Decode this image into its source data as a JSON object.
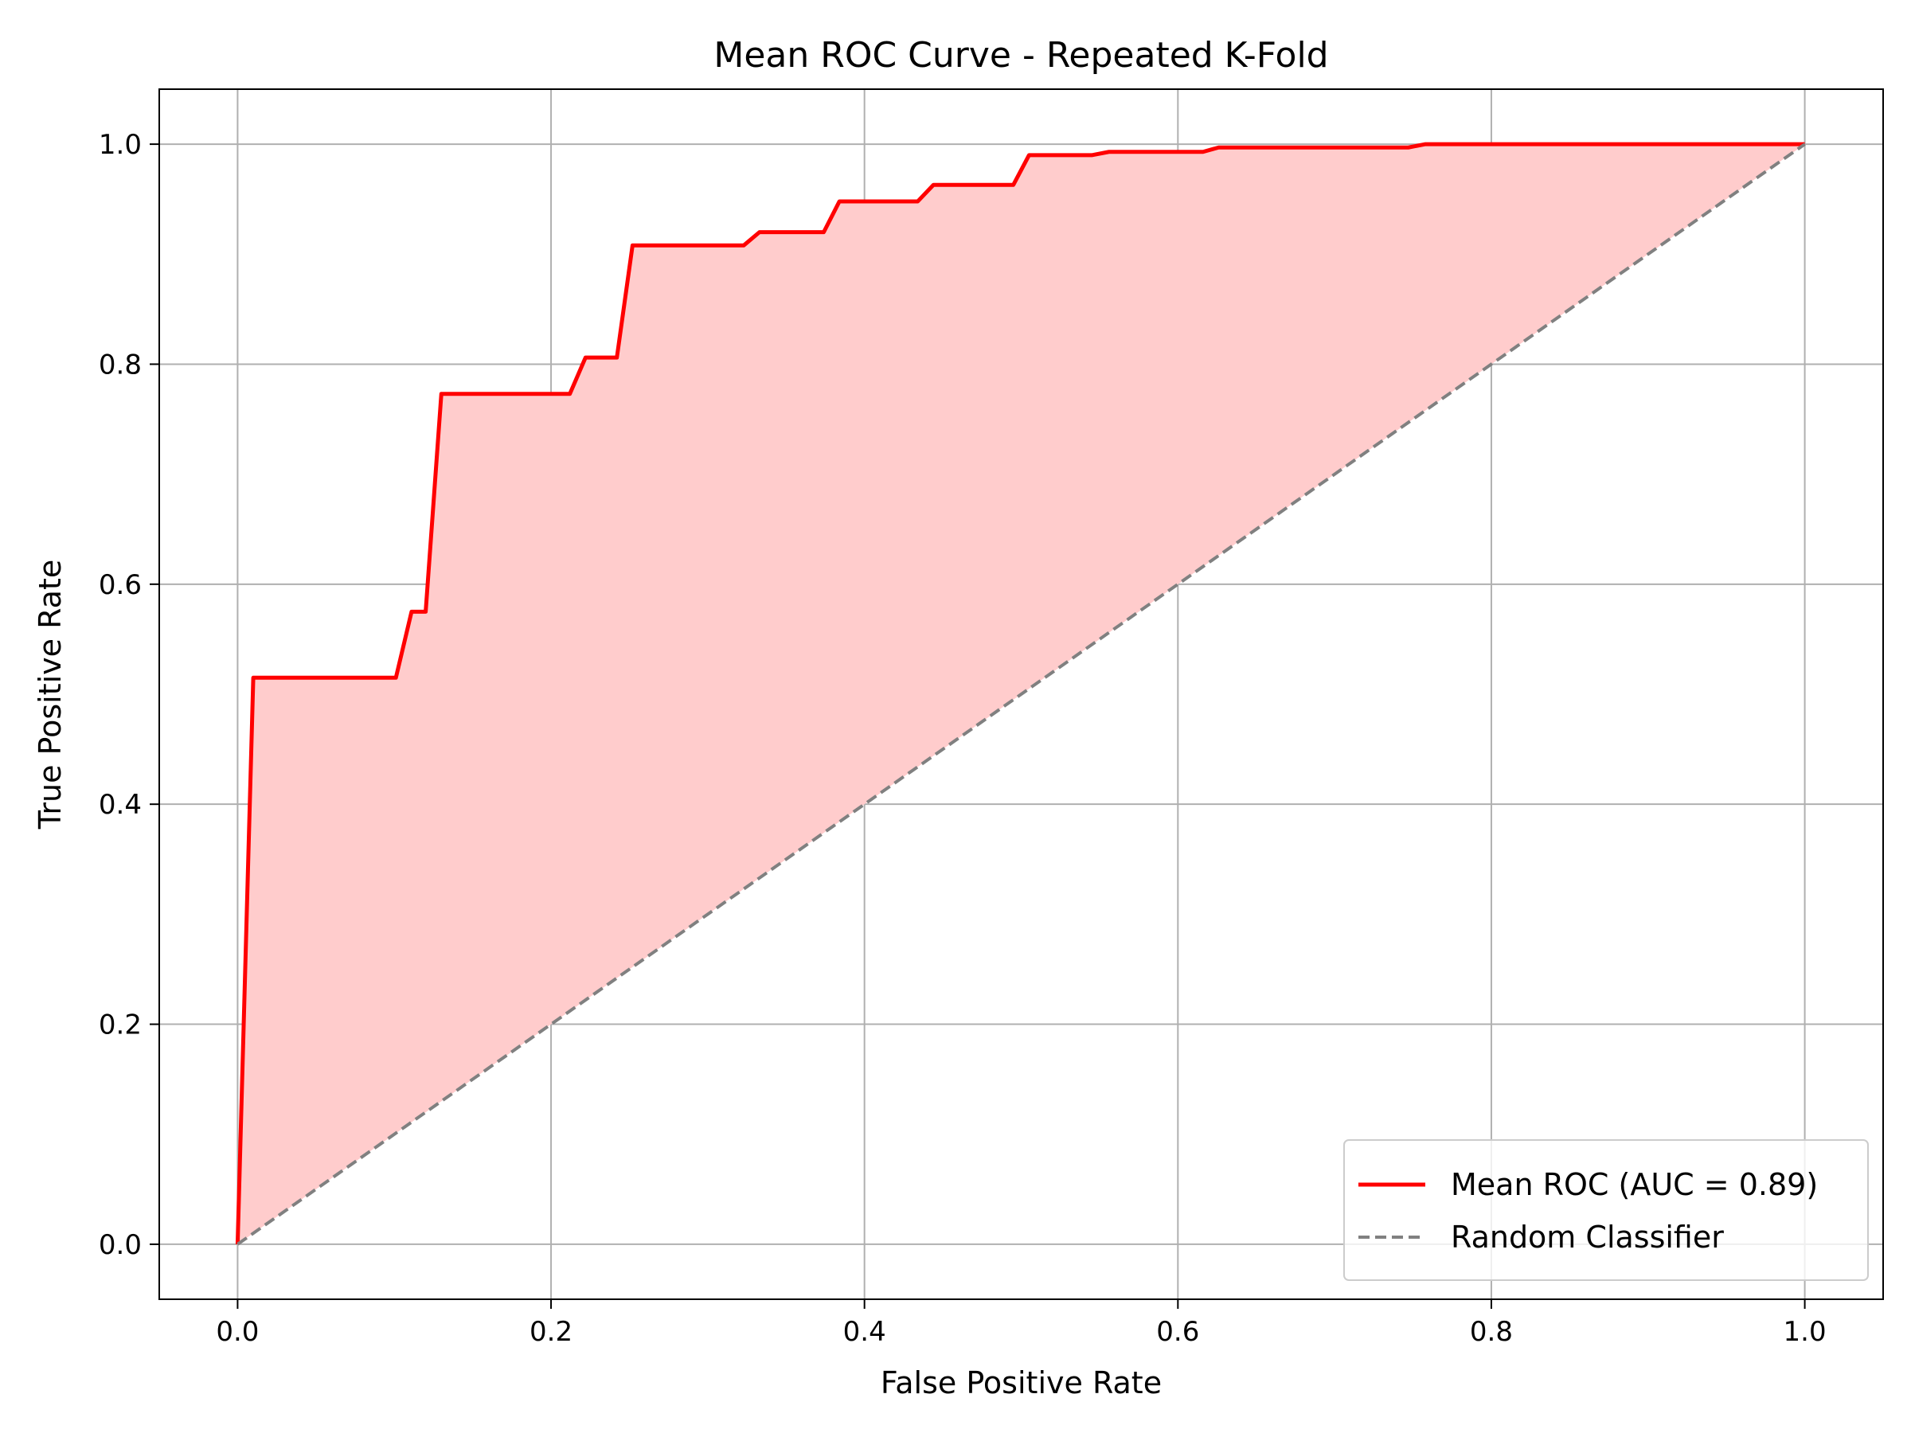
{
  "chart_data": {
    "type": "line",
    "title": "Mean ROC Curve - Repeated K-Fold",
    "xlabel": "False Positive Rate",
    "ylabel": "True Positive Rate",
    "xlim": [
      -0.05,
      1.05
    ],
    "ylim": [
      -0.05,
      1.05
    ],
    "xticks": [
      "0.0",
      "0.2",
      "0.4",
      "0.6",
      "0.8",
      "1.0"
    ],
    "yticks": [
      "0.0",
      "0.2",
      "0.4",
      "0.6",
      "0.8",
      "1.0"
    ],
    "grid": true,
    "legend_position": "lower-right",
    "series": [
      {
        "name": "Mean ROC (AUC = 0.89)",
        "color": "#ff0000",
        "style": "solid",
        "fill_color": "#ffcccc",
        "fill_to": "diagonal",
        "x": [
          0.0,
          0.01,
          0.101,
          0.111,
          0.12,
          0.13,
          0.141,
          0.151,
          0.162,
          0.172,
          0.182,
          0.192,
          0.202,
          0.212,
          0.222,
          0.232,
          0.242,
          0.252,
          0.263,
          0.273,
          0.283,
          0.293,
          0.303,
          0.313,
          0.323,
          0.333,
          0.343,
          0.354,
          0.364,
          0.374,
          0.384,
          0.394,
          0.404,
          0.414,
          0.424,
          0.434,
          0.444,
          0.455,
          0.465,
          0.475,
          0.485,
          0.495,
          0.505,
          0.515,
          0.525,
          0.535,
          0.545,
          0.556,
          0.566,
          0.576,
          0.586,
          0.596,
          0.606,
          0.616,
          0.626,
          0.636,
          0.646,
          0.657,
          0.667,
          0.677,
          0.687,
          0.697,
          0.707,
          0.717,
          0.727,
          0.737,
          0.747,
          0.758,
          0.768,
          0.778,
          0.788,
          0.798,
          0.808,
          0.818,
          0.828,
          0.838,
          0.848,
          0.859,
          0.869,
          0.879,
          0.889,
          0.899,
          0.909,
          0.919,
          0.929,
          0.939,
          0.949,
          0.96,
          0.97,
          0.98,
          0.99,
          1.0
        ],
        "y": [
          0.0,
          0.515,
          0.515,
          0.575,
          0.575,
          0.773,
          0.773,
          0.773,
          0.773,
          0.773,
          0.773,
          0.773,
          0.773,
          0.773,
          0.806,
          0.806,
          0.806,
          0.908,
          0.908,
          0.908,
          0.908,
          0.908,
          0.908,
          0.908,
          0.908,
          0.92,
          0.92,
          0.92,
          0.92,
          0.92,
          0.948,
          0.948,
          0.948,
          0.948,
          0.948,
          0.948,
          0.963,
          0.963,
          0.963,
          0.963,
          0.963,
          0.963,
          0.99,
          0.99,
          0.99,
          0.99,
          0.99,
          0.993,
          0.993,
          0.993,
          0.993,
          0.993,
          0.993,
          0.993,
          0.997,
          0.997,
          0.997,
          0.997,
          0.997,
          0.997,
          0.997,
          0.997,
          0.997,
          0.997,
          0.997,
          0.997,
          0.997,
          1.0,
          1.0,
          1.0,
          1.0,
          1.0,
          1.0,
          1.0,
          1.0,
          1.0,
          1.0,
          1.0,
          1.0,
          1.0,
          1.0,
          1.0,
          1.0,
          1.0,
          1.0,
          1.0,
          1.0,
          1.0,
          1.0,
          1.0,
          1.0,
          1.0
        ]
      },
      {
        "name": "Random Classifier",
        "color": "#808080",
        "style": "dashed",
        "x": [
          0.0,
          1.0
        ],
        "y": [
          0.0,
          1.0
        ]
      }
    ]
  }
}
